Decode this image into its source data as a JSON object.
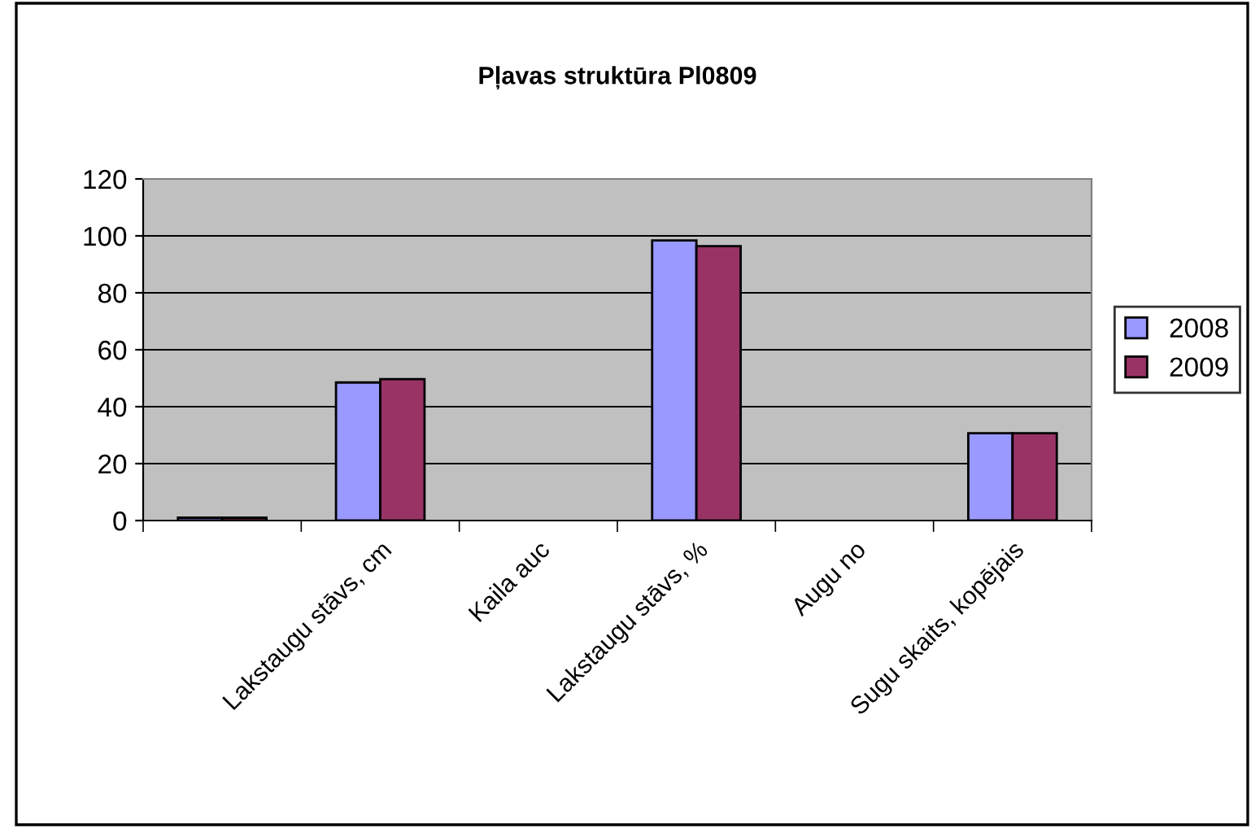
{
  "chart_data": {
    "type": "bar",
    "title": "Pļavas struktūra Pl0809",
    "categories": [
      null,
      "Lakstaugu stāvs, cm",
      "Kaila auc",
      "Lakstaugu stāvs, %",
      "Augu no",
      "Sugu skaits, kopējais"
    ],
    "series": [
      {
        "name": "2008",
        "color": "#9999ff",
        "values": [
          1,
          48.5,
          null,
          98.4,
          null,
          30.7
        ]
      },
      {
        "name": "2009",
        "color": "#993366",
        "values": [
          1,
          49.7,
          null,
          96.4,
          null,
          30.7
        ]
      }
    ],
    "ylim": [
      0,
      120
    ],
    "yticks": [
      0,
      20,
      40,
      60,
      80,
      100,
      120
    ],
    "grid": "y",
    "legend": "right"
  }
}
